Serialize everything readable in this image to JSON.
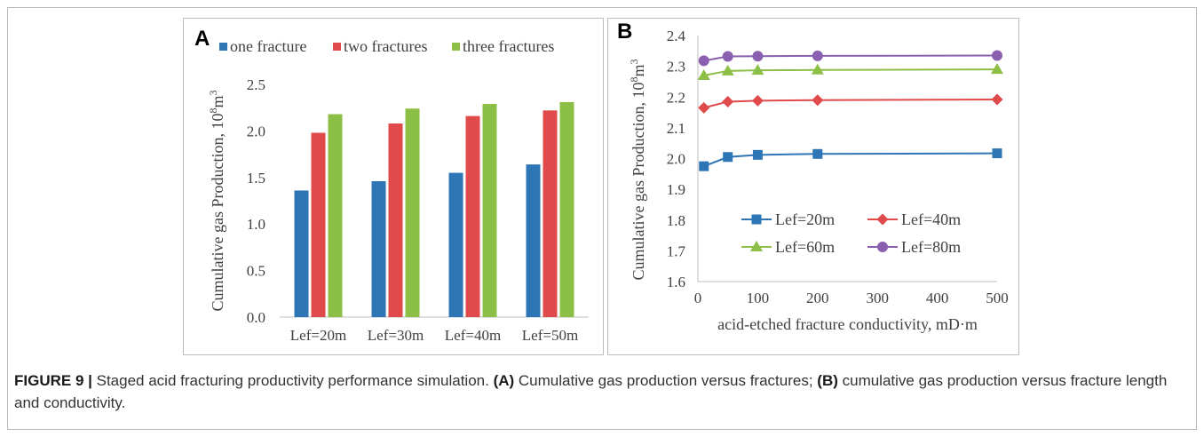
{
  "caption": {
    "label": "FIGURE 9 |",
    "text_1": " Staged acid fracturing productivity performance simulation. ",
    "a_tag": "(A)",
    "text_2": " Cumulative gas production versus fractures; ",
    "b_tag": "(B)",
    "text_3": " cumulative gas production versus fracture length and conductivity."
  },
  "chart_data": [
    {
      "panel": "A",
      "type": "bar",
      "categories": [
        "Lef=20m",
        "Lef=30m",
        "Lef=40m",
        "Lef=50m"
      ],
      "series": [
        {
          "name": "one fracture",
          "color": "#2e75b6",
          "values": [
            1.36,
            1.46,
            1.55,
            1.64
          ]
        },
        {
          "name": "two fractures",
          "color": "#e04a4a",
          "values": [
            1.98,
            2.08,
            2.16,
            2.22
          ]
        },
        {
          "name": "three fractures",
          "color": "#8cbf45",
          "values": [
            2.18,
            2.24,
            2.29,
            2.31
          ]
        }
      ],
      "ylabel_main": "Cumulative gas Production, 10",
      "ylabel_sup": "8",
      "ylabel_unit": "m",
      "ylabel_sup2": "3",
      "ylim": [
        0,
        2.5
      ],
      "yticks": [
        "0.0",
        "0.5",
        "1.0",
        "1.5",
        "2.0",
        "2.5"
      ],
      "legend_position": "top"
    },
    {
      "panel": "B",
      "type": "line",
      "xlabel": "acid-etched fracture conductivity, mD·m",
      "ylabel_main": "Cumulative gas Production, 10",
      "ylabel_sup": "8",
      "ylabel_unit": "m",
      "ylabel_sup2": "3",
      "xlim": [
        0,
        500
      ],
      "ylim": [
        1.6,
        2.4
      ],
      "xticks": [
        "0",
        "100",
        "200",
        "300",
        "400",
        "500"
      ],
      "yticks": [
        "1.6",
        "1.7",
        "1.8",
        "1.9",
        "2.0",
        "2.1",
        "2.2",
        "2.3",
        "2.4"
      ],
      "x": [
        10,
        50,
        100,
        200,
        500
      ],
      "series": [
        {
          "name": "Lef=20m",
          "color": "#2e75b6",
          "marker": "square",
          "values": [
            1.975,
            2.005,
            2.012,
            2.015,
            2.017
          ]
        },
        {
          "name": "Lef=40m",
          "color": "#e04a4a",
          "marker": "diamond",
          "values": [
            2.165,
            2.185,
            2.188,
            2.19,
            2.192
          ]
        },
        {
          "name": "Lef=60m",
          "color": "#8cbf45",
          "marker": "triangle",
          "values": [
            2.27,
            2.285,
            2.287,
            2.288,
            2.29
          ]
        },
        {
          "name": "Lef=80m",
          "color": "#8a5fb0",
          "marker": "circle",
          "values": [
            2.318,
            2.332,
            2.333,
            2.334,
            2.335
          ]
        }
      ],
      "legend_position": "lower-center"
    }
  ]
}
